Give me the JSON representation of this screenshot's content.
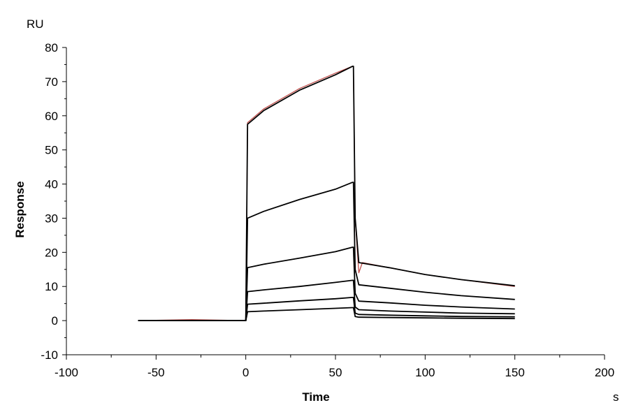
{
  "chart_data": {
    "type": "line",
    "title": "",
    "xlabel": "Time",
    "ylabel": "Response",
    "xunit": "s",
    "yunit": "RU",
    "xlim": [
      -100,
      200
    ],
    "ylim": [
      -10,
      80
    ],
    "xticks": [
      -100,
      -50,
      0,
      50,
      100,
      150,
      200
    ],
    "yticks": [
      -10,
      0,
      10,
      20,
      30,
      40,
      50,
      60,
      70,
      80
    ],
    "grid": false,
    "legend": "none",
    "colors": {
      "fit": "#000000",
      "measured": "#c0504d",
      "measured_alt": "#2e7d7d"
    },
    "series": [
      {
        "color": "#c0504d",
        "x": [
          -60,
          -30,
          0,
          1,
          10,
          30,
          50,
          59.5,
          60,
          61,
          63,
          65,
          80,
          100,
          120,
          150
        ],
        "y": [
          0,
          0.3,
          0,
          58,
          62,
          68,
          72.5,
          74.5,
          74.5,
          30,
          14,
          17,
          15.5,
          13.5,
          12,
          10
        ]
      },
      {
        "color": "#000000",
        "x": [
          -60,
          0,
          1,
          10,
          30,
          50,
          59.5,
          60,
          61,
          63,
          80,
          100,
          120,
          150
        ],
        "y": [
          0,
          0,
          57.5,
          61.5,
          67.5,
          72,
          74.5,
          74.5,
          30,
          17,
          15.5,
          13.5,
          12,
          10.2
        ]
      },
      {
        "color": "#000000",
        "x": [
          -60,
          0,
          1,
          10,
          30,
          50,
          59.5,
          60,
          61,
          63,
          80,
          100,
          120,
          150
        ],
        "y": [
          0,
          0,
          30,
          32,
          35.5,
          38.5,
          40.5,
          40.5,
          15,
          10.5,
          9.5,
          8.3,
          7.3,
          6.2
        ]
      },
      {
        "color": "#000000",
        "x": [
          -60,
          0,
          1,
          10,
          30,
          50,
          59.5,
          60,
          61,
          63,
          80,
          100,
          120,
          150
        ],
        "y": [
          0,
          0,
          15.5,
          16.5,
          18.3,
          20.2,
          21.5,
          21.5,
          8,
          5.7,
          5.2,
          4.5,
          4,
          3.4
        ]
      },
      {
        "color": "#000000",
        "x": [
          -60,
          0,
          1,
          10,
          30,
          50,
          59.5,
          60,
          61,
          63,
          80,
          100,
          120,
          150
        ],
        "y": [
          0,
          0,
          8.5,
          9,
          10,
          11.2,
          11.8,
          11.8,
          4,
          3.2,
          2.8,
          2.5,
          2.2,
          2
        ]
      },
      {
        "color": "#000000",
        "x": [
          -60,
          0,
          1,
          10,
          30,
          50,
          59.5,
          60,
          61,
          63,
          80,
          100,
          120,
          150
        ],
        "y": [
          0,
          0,
          4.8,
          5.1,
          5.8,
          6.4,
          6.8,
          6.8,
          2.2,
          1.8,
          1.6,
          1.4,
          1.2,
          1.1
        ]
      },
      {
        "color": "#000000",
        "x": [
          -60,
          0,
          1,
          10,
          30,
          50,
          59.5,
          60,
          61,
          63,
          80,
          100,
          120,
          150
        ],
        "y": [
          0,
          0,
          2.6,
          2.8,
          3.2,
          3.6,
          3.8,
          3.8,
          1.2,
          1,
          0.9,
          0.8,
          0.7,
          0.6
        ]
      }
    ]
  }
}
